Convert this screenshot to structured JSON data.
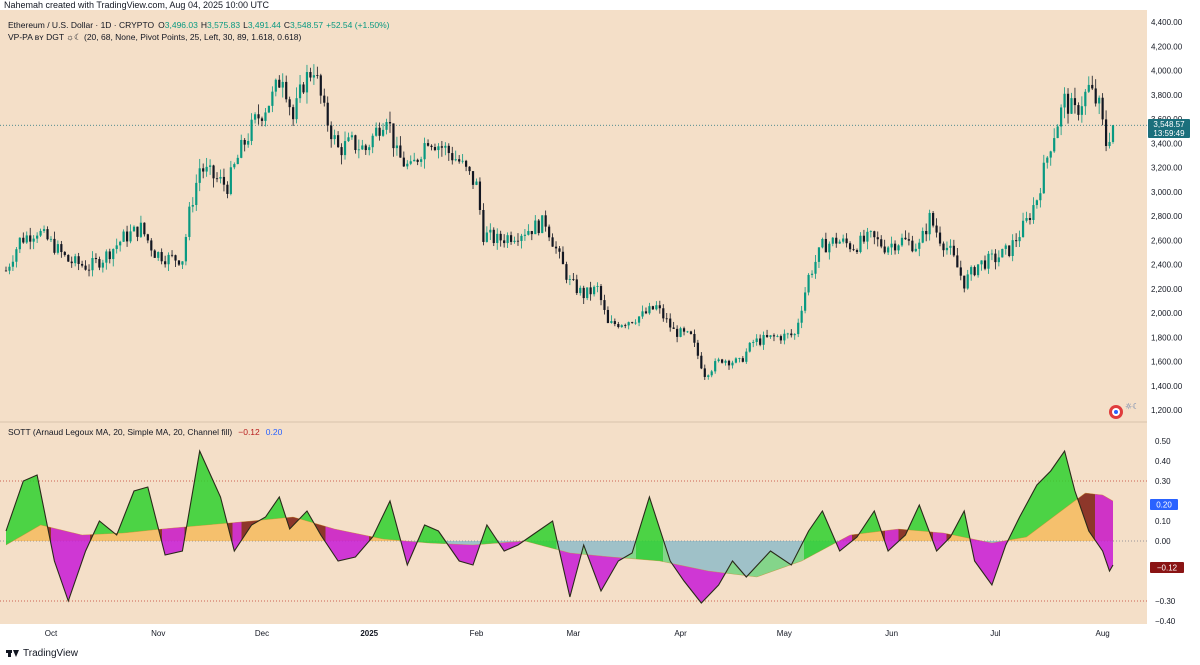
{
  "header": {
    "author_text": "Nahemah created with TradingView.com, Aug 04, 2025 10:00 UTC"
  },
  "footer": {
    "brand": "TradingView"
  },
  "legend": {
    "symbol": "Ethereum / U.S. Dollar · 1D · CRYPTO",
    "o_label": "O",
    "o": "3,496.03",
    "h_label": "H",
    "h": "3,575.83",
    "l_label": "L",
    "l": "3,491.44",
    "c_label": "C",
    "c": "3,548.57",
    "change": "+52.54 (+1.50%)",
    "indicator": "VP-PA ʙʏ DGT ☼☾ (20, 68, None, Pivot Points, 25, Left, 30, 89, 1.618, 0.618)",
    "sott": "SOTT (Arnaud Legoux MA, 20, Simple MA, 20, Channel fill)",
    "sott_v1": "−0.12",
    "sott_v2": "0.20"
  },
  "price_badge": {
    "price": "3,548.57",
    "countdown": "13:59:49"
  },
  "colors": {
    "background": "#f4dfc8",
    "candle_up": "#089981",
    "candle_down": "#131722",
    "badge": "#1b6f7c",
    "osc_pos": "#2ed12e",
    "osc_neg": "#c81ad6",
    "signal_pos": "#f5a623",
    "signal_neg": "#5aa7c9"
  },
  "chart_data": [
    {
      "type": "candlestick",
      "title": "Ethereum / U.S. Dollar · 1D · CRYPTO",
      "ylim": [
        1100,
        4400
      ],
      "y_ticks": [
        "4,400.00",
        "4,200.00",
        "4,000.00",
        "3,800.00",
        "3,600.00",
        "3,400.00",
        "3,200.00",
        "3,000.00",
        "2,800.00",
        "2,600.00",
        "2,400.00",
        "2,200.00",
        "2,000.00",
        "1,800.00",
        "1,600.00",
        "1,400.00",
        "1,200.00"
      ],
      "y_tick_values": [
        4400,
        4200,
        4000,
        3800,
        3600,
        3400,
        3200,
        3000,
        2800,
        2600,
        2400,
        2200,
        2000,
        1800,
        1600,
        1400,
        1200
      ],
      "x_ticks": [
        "Oct",
        "Nov",
        "Dec",
        "2025",
        "Feb",
        "Mar",
        "Apr",
        "May",
        "Jun",
        "Jul",
        "Aug"
      ],
      "x_tick_dates": [
        "2024-10-01",
        "2024-11-01",
        "2024-12-01",
        "2025-01-01",
        "2025-02-01",
        "2025-03-01",
        "2025-04-01",
        "2025-05-01",
        "2025-06-01",
        "2025-07-01",
        "2025-08-01"
      ],
      "date_range": [
        "2024-09-18",
        "2025-08-04"
      ],
      "last_close": 3548.57,
      "close_path": [
        [
          "2024-09-18",
          2350
        ],
        [
          "2024-09-22",
          2600
        ],
        [
          "2024-09-27",
          2680
        ],
        [
          "2024-10-02",
          2550
        ],
        [
          "2024-10-06",
          2430
        ],
        [
          "2024-10-12",
          2380
        ],
        [
          "2024-10-16",
          2450
        ],
        [
          "2024-10-22",
          2620
        ],
        [
          "2024-10-27",
          2700
        ],
        [
          "2024-10-31",
          2500
        ],
        [
          "2024-11-04",
          2450
        ],
        [
          "2024-11-08",
          2450
        ],
        [
          "2024-11-10",
          2820
        ],
        [
          "2024-11-13",
          3200
        ],
        [
          "2024-11-18",
          3100
        ],
        [
          "2024-11-21",
          3050
        ],
        [
          "2024-11-25",
          3350
        ],
        [
          "2024-11-29",
          3580
        ],
        [
          "2024-12-04",
          3780
        ],
        [
          "2024-12-07",
          3980
        ],
        [
          "2024-12-10",
          3600
        ],
        [
          "2024-12-13",
          3900
        ],
        [
          "2024-12-16",
          4030
        ],
        [
          "2024-12-19",
          3650
        ],
        [
          "2024-12-23",
          3350
        ],
        [
          "2024-12-27",
          3400
        ],
        [
          "2024-12-31",
          3350
        ],
        [
          "2025-01-06",
          3650
        ],
        [
          "2025-01-09",
          3300
        ],
        [
          "2025-01-13",
          3180
        ],
        [
          "2025-01-18",
          3450
        ],
        [
          "2025-01-23",
          3350
        ],
        [
          "2025-01-27",
          3250
        ],
        [
          "2025-02-01",
          3050
        ],
        [
          "2025-02-03",
          2650
        ],
        [
          "2025-02-07",
          2600
        ],
        [
          "2025-02-12",
          2650
        ],
        [
          "2025-02-17",
          2700
        ],
        [
          "2025-02-21",
          2750
        ],
        [
          "2025-02-25",
          2450
        ],
        [
          "2025-02-28",
          2250
        ],
        [
          "2025-03-04",
          2150
        ],
        [
          "2025-03-08",
          2200
        ],
        [
          "2025-03-11",
          1900
        ],
        [
          "2025-03-16",
          1930
        ],
        [
          "2025-03-21",
          1980
        ],
        [
          "2025-03-25",
          2050
        ],
        [
          "2025-03-30",
          1850
        ],
        [
          "2025-04-04",
          1800
        ],
        [
          "2025-04-08",
          1500
        ],
        [
          "2025-04-13",
          1620
        ],
        [
          "2025-04-18",
          1590
        ],
        [
          "2025-04-22",
          1760
        ],
        [
          "2025-04-28",
          1800
        ],
        [
          "2025-05-04",
          1820
        ],
        [
          "2025-05-08",
          2300
        ],
        [
          "2025-05-12",
          2550
        ],
        [
          "2025-05-16",
          2600
        ],
        [
          "2025-05-21",
          2550
        ],
        [
          "2025-05-26",
          2620
        ],
        [
          "2025-05-30",
          2550
        ],
        [
          "2025-06-04",
          2600
        ],
        [
          "2025-06-09",
          2550
        ],
        [
          "2025-06-12",
          2780
        ],
        [
          "2025-06-15",
          2620
        ],
        [
          "2025-06-18",
          2500
        ],
        [
          "2025-06-22",
          2250
        ],
        [
          "2025-06-26",
          2400
        ],
        [
          "2025-07-01",
          2450
        ],
        [
          "2025-07-05",
          2520
        ],
        [
          "2025-07-10",
          2750
        ],
        [
          "2025-07-13",
          2950
        ],
        [
          "2025-07-17",
          3400
        ],
        [
          "2025-07-21",
          3750
        ],
        [
          "2025-07-24",
          3650
        ],
        [
          "2025-07-28",
          3850
        ],
        [
          "2025-07-31",
          3700
        ],
        [
          "2025-08-02",
          3400
        ],
        [
          "2025-08-04",
          3548.57
        ]
      ]
    },
    {
      "type": "area",
      "title": "SOTT (Arnaud Legoux MA, 20, Simple MA, 20, Channel fill)",
      "ylim": [
        -0.4,
        0.55
      ],
      "y_ticks": [
        "0.50",
        "0.40",
        "0.30",
        "0.10",
        "0.00",
        "−0.30",
        "−0.40"
      ],
      "y_tick_values": [
        0.5,
        0.4,
        0.3,
        0.1,
        0.0,
        -0.3,
        -0.4
      ],
      "reference_lines": [
        0.3,
        0.0,
        -0.3
      ],
      "series": [
        {
          "name": "SOTT",
          "last": -0.12,
          "points": [
            [
              "2024-09-18",
              0.05
            ],
            [
              "2024-09-23",
              0.3
            ],
            [
              "2024-09-27",
              0.33
            ],
            [
              "2024-10-02",
              -0.1
            ],
            [
              "2024-10-06",
              -0.3
            ],
            [
              "2024-10-11",
              -0.05
            ],
            [
              "2024-10-15",
              0.1
            ],
            [
              "2024-10-20",
              0.03
            ],
            [
              "2024-10-25",
              0.25
            ],
            [
              "2024-10-29",
              0.27
            ],
            [
              "2024-11-03",
              -0.07
            ],
            [
              "2024-11-08",
              -0.05
            ],
            [
              "2024-11-13",
              0.45
            ],
            [
              "2024-11-19",
              0.22
            ],
            [
              "2024-11-23",
              -0.05
            ],
            [
              "2024-11-28",
              0.08
            ],
            [
              "2024-12-02",
              0.12
            ],
            [
              "2024-12-06",
              0.22
            ],
            [
              "2024-12-09",
              0.06
            ],
            [
              "2024-12-14",
              0.15
            ],
            [
              "2024-12-18",
              0.03
            ],
            [
              "2024-12-23",
              -0.1
            ],
            [
              "2024-12-28",
              -0.08
            ],
            [
              "2025-01-02",
              0.02
            ],
            [
              "2025-01-07",
              0.2
            ],
            [
              "2025-01-12",
              -0.12
            ],
            [
              "2025-01-17",
              0.08
            ],
            [
              "2025-01-21",
              0.05
            ],
            [
              "2025-01-27",
              -0.1
            ],
            [
              "2025-01-31",
              -0.12
            ],
            [
              "2025-02-04",
              0.08
            ],
            [
              "2025-02-09",
              -0.05
            ],
            [
              "2025-02-13",
              -0.02
            ],
            [
              "2025-02-18",
              0.04
            ],
            [
              "2025-02-23",
              0.1
            ],
            [
              "2025-02-28",
              -0.28
            ],
            [
              "2025-03-04",
              -0.02
            ],
            [
              "2025-03-09",
              -0.25
            ],
            [
              "2025-03-14",
              -0.1
            ],
            [
              "2025-03-18",
              -0.06
            ],
            [
              "2025-03-23",
              0.22
            ],
            [
              "2025-03-29",
              -0.1
            ],
            [
              "2025-04-02",
              -0.2
            ],
            [
              "2025-04-07",
              -0.31
            ],
            [
              "2025-04-12",
              -0.22
            ],
            [
              "2025-04-16",
              -0.1
            ],
            [
              "2025-04-20",
              -0.18
            ],
            [
              "2025-04-27",
              -0.05
            ],
            [
              "2025-05-03",
              -0.12
            ],
            [
              "2025-05-08",
              0.05
            ],
            [
              "2025-05-12",
              0.15
            ],
            [
              "2025-05-17",
              -0.05
            ],
            [
              "2025-05-22",
              0.02
            ],
            [
              "2025-05-27",
              0.15
            ],
            [
              "2025-05-31",
              -0.05
            ],
            [
              "2025-06-05",
              0.03
            ],
            [
              "2025-06-09",
              0.18
            ],
            [
              "2025-06-14",
              -0.05
            ],
            [
              "2025-06-18",
              0.02
            ],
            [
              "2025-06-22",
              0.15
            ],
            [
              "2025-06-25",
              -0.1
            ],
            [
              "2025-06-30",
              -0.22
            ],
            [
              "2025-07-04",
              -0.02
            ],
            [
              "2025-07-08",
              0.12
            ],
            [
              "2025-07-13",
              0.28
            ],
            [
              "2025-07-17",
              0.35
            ],
            [
              "2025-07-21",
              0.45
            ],
            [
              "2025-07-24",
              0.25
            ],
            [
              "2025-07-28",
              0.05
            ],
            [
              "2025-08-01",
              -0.05
            ],
            [
              "2025-08-03",
              -0.15
            ],
            [
              "2025-08-04",
              -0.12
            ]
          ]
        },
        {
          "name": "Signal",
          "last": 0.2,
          "points": [
            [
              "2024-09-18",
              -0.02
            ],
            [
              "2024-09-28",
              0.08
            ],
            [
              "2024-10-10",
              0.03
            ],
            [
              "2024-10-22",
              0.04
            ],
            [
              "2024-11-02",
              0.06
            ],
            [
              "2024-11-15",
              0.08
            ],
            [
              "2024-11-28",
              0.1
            ],
            [
              "2024-12-10",
              0.12
            ],
            [
              "2024-12-22",
              0.06
            ],
            [
              "2025-01-05",
              0.01
            ],
            [
              "2025-01-18",
              -0.01
            ],
            [
              "2025-01-31",
              -0.02
            ],
            [
              "2025-02-15",
              0.0
            ],
            [
              "2025-02-28",
              -0.06
            ],
            [
              "2025-03-12",
              -0.08
            ],
            [
              "2025-03-26",
              -0.1
            ],
            [
              "2025-04-09",
              -0.15
            ],
            [
              "2025-04-23",
              -0.18
            ],
            [
              "2025-05-06",
              -0.1
            ],
            [
              "2025-05-20",
              0.03
            ],
            [
              "2025-06-03",
              0.06
            ],
            [
              "2025-06-16",
              0.04
            ],
            [
              "2025-06-30",
              -0.01
            ],
            [
              "2025-07-10",
              0.02
            ],
            [
              "2025-07-20",
              0.15
            ],
            [
              "2025-07-27",
              0.24
            ],
            [
              "2025-08-01",
              0.23
            ],
            [
              "2025-08-04",
              0.2
            ]
          ]
        }
      ]
    }
  ]
}
